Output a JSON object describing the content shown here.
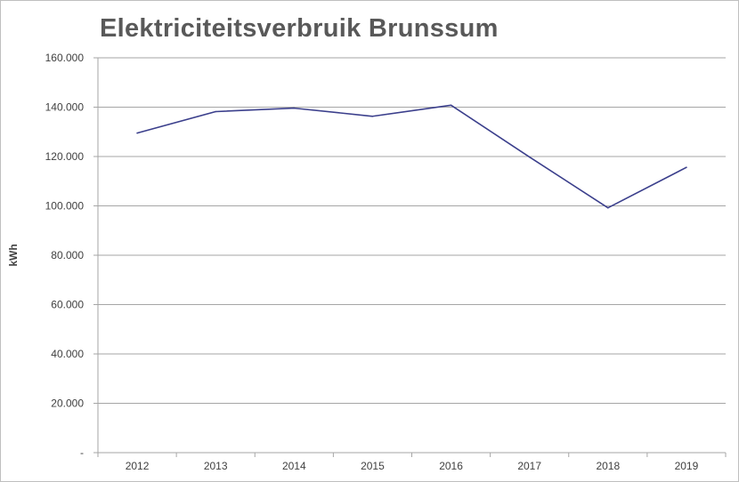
{
  "chart_data": {
    "type": "line",
    "title": "Elektriciteitsverbruik Brunssum",
    "xlabel": "",
    "ylabel": "kWh",
    "categories": [
      "2012",
      "2013",
      "2014",
      "2015",
      "2016",
      "2017",
      "2018",
      "2019"
    ],
    "series": [
      {
        "values": [
          129500,
          138200,
          139600,
          136300,
          140800,
          119800,
          99200,
          115600
        ]
      }
    ],
    "ylim": [
      0,
      160000
    ],
    "yticks": [
      0,
      20000,
      40000,
      60000,
      80000,
      100000,
      120000,
      140000,
      160000
    ],
    "ytick_labels": [
      "-",
      "20.000",
      "40.000",
      "60.000",
      "80.000",
      "100.000",
      "120.000",
      "140.000",
      "160.000"
    ],
    "grid": true,
    "line_color": "#3b3f8c",
    "grid_color": "#a6a6a6"
  }
}
